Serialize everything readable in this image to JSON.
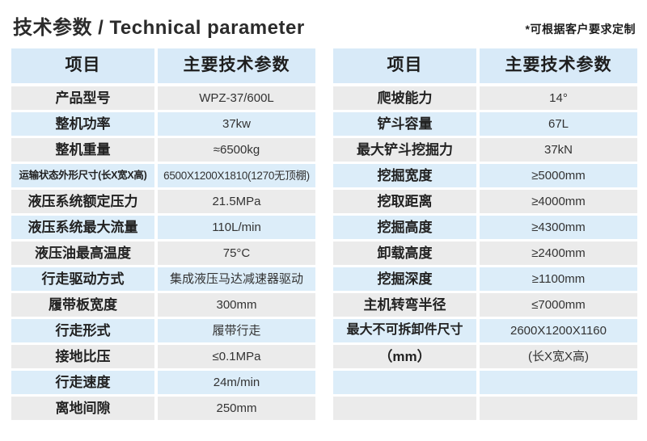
{
  "page": {
    "title": "技术参数 / Technical parameter",
    "note": "*可根据客户要求定制"
  },
  "tables": [
    {
      "headers": {
        "item": "项目",
        "param": "主要技术参数"
      },
      "rows": [
        {
          "label": "产品型号",
          "value": "WPZ-37/600L"
        },
        {
          "label": "整机功率",
          "value": "37kw"
        },
        {
          "label": "整机重量",
          "value": "≈6500kg"
        },
        {
          "label": "运输状态外形尺寸(长X宽X高)",
          "value": "6500X1200X1810(1270无顶棚)"
        },
        {
          "label": "液压系统额定压力",
          "value": "21.5MPa"
        },
        {
          "label": "液压系统最大流量",
          "value": "110L/min"
        },
        {
          "label": "液压油最高温度",
          "value": "75°C"
        },
        {
          "label": "行走驱动方式",
          "value": "集成液压马达减速器驱动"
        },
        {
          "label": "履带板宽度",
          "value": "300mm"
        },
        {
          "label": "行走形式",
          "value": "履带行走"
        },
        {
          "label": "接地比压",
          "value": "≤0.1MPa"
        },
        {
          "label": "行走速度",
          "value": "24m/min"
        },
        {
          "label": "离地间隙",
          "value": "250mm"
        }
      ]
    },
    {
      "headers": {
        "item": "项目",
        "param": "主要技术参数"
      },
      "rows": [
        {
          "label": "爬坡能力",
          "value": "14°"
        },
        {
          "label": "铲斗容量",
          "value": "67L"
        },
        {
          "label": "最大铲斗挖掘力",
          "value": "37kN"
        },
        {
          "label": "挖掘宽度",
          "value": "≥5000mm"
        },
        {
          "label": "挖取距离",
          "value": "≥4000mm"
        },
        {
          "label": "挖掘高度",
          "value": "≥4300mm"
        },
        {
          "label": "卸载高度",
          "value": "≥2400mm"
        },
        {
          "label": "挖掘深度",
          "value": "≥1100mm"
        },
        {
          "label": "主机转弯半径",
          "value": "≤7000mm"
        },
        {
          "label": "最大不可拆卸件尺寸",
          "value": "2600X1200X1160"
        },
        {
          "label": "（mm）",
          "value": "(长X宽X高)"
        },
        {
          "label": "",
          "value": ""
        },
        {
          "label": "",
          "value": ""
        }
      ]
    }
  ],
  "colors": {
    "header_bg": "#d8eaf8",
    "row_blue": "#dcedf9",
    "row_gray": "#ebebeb"
  }
}
